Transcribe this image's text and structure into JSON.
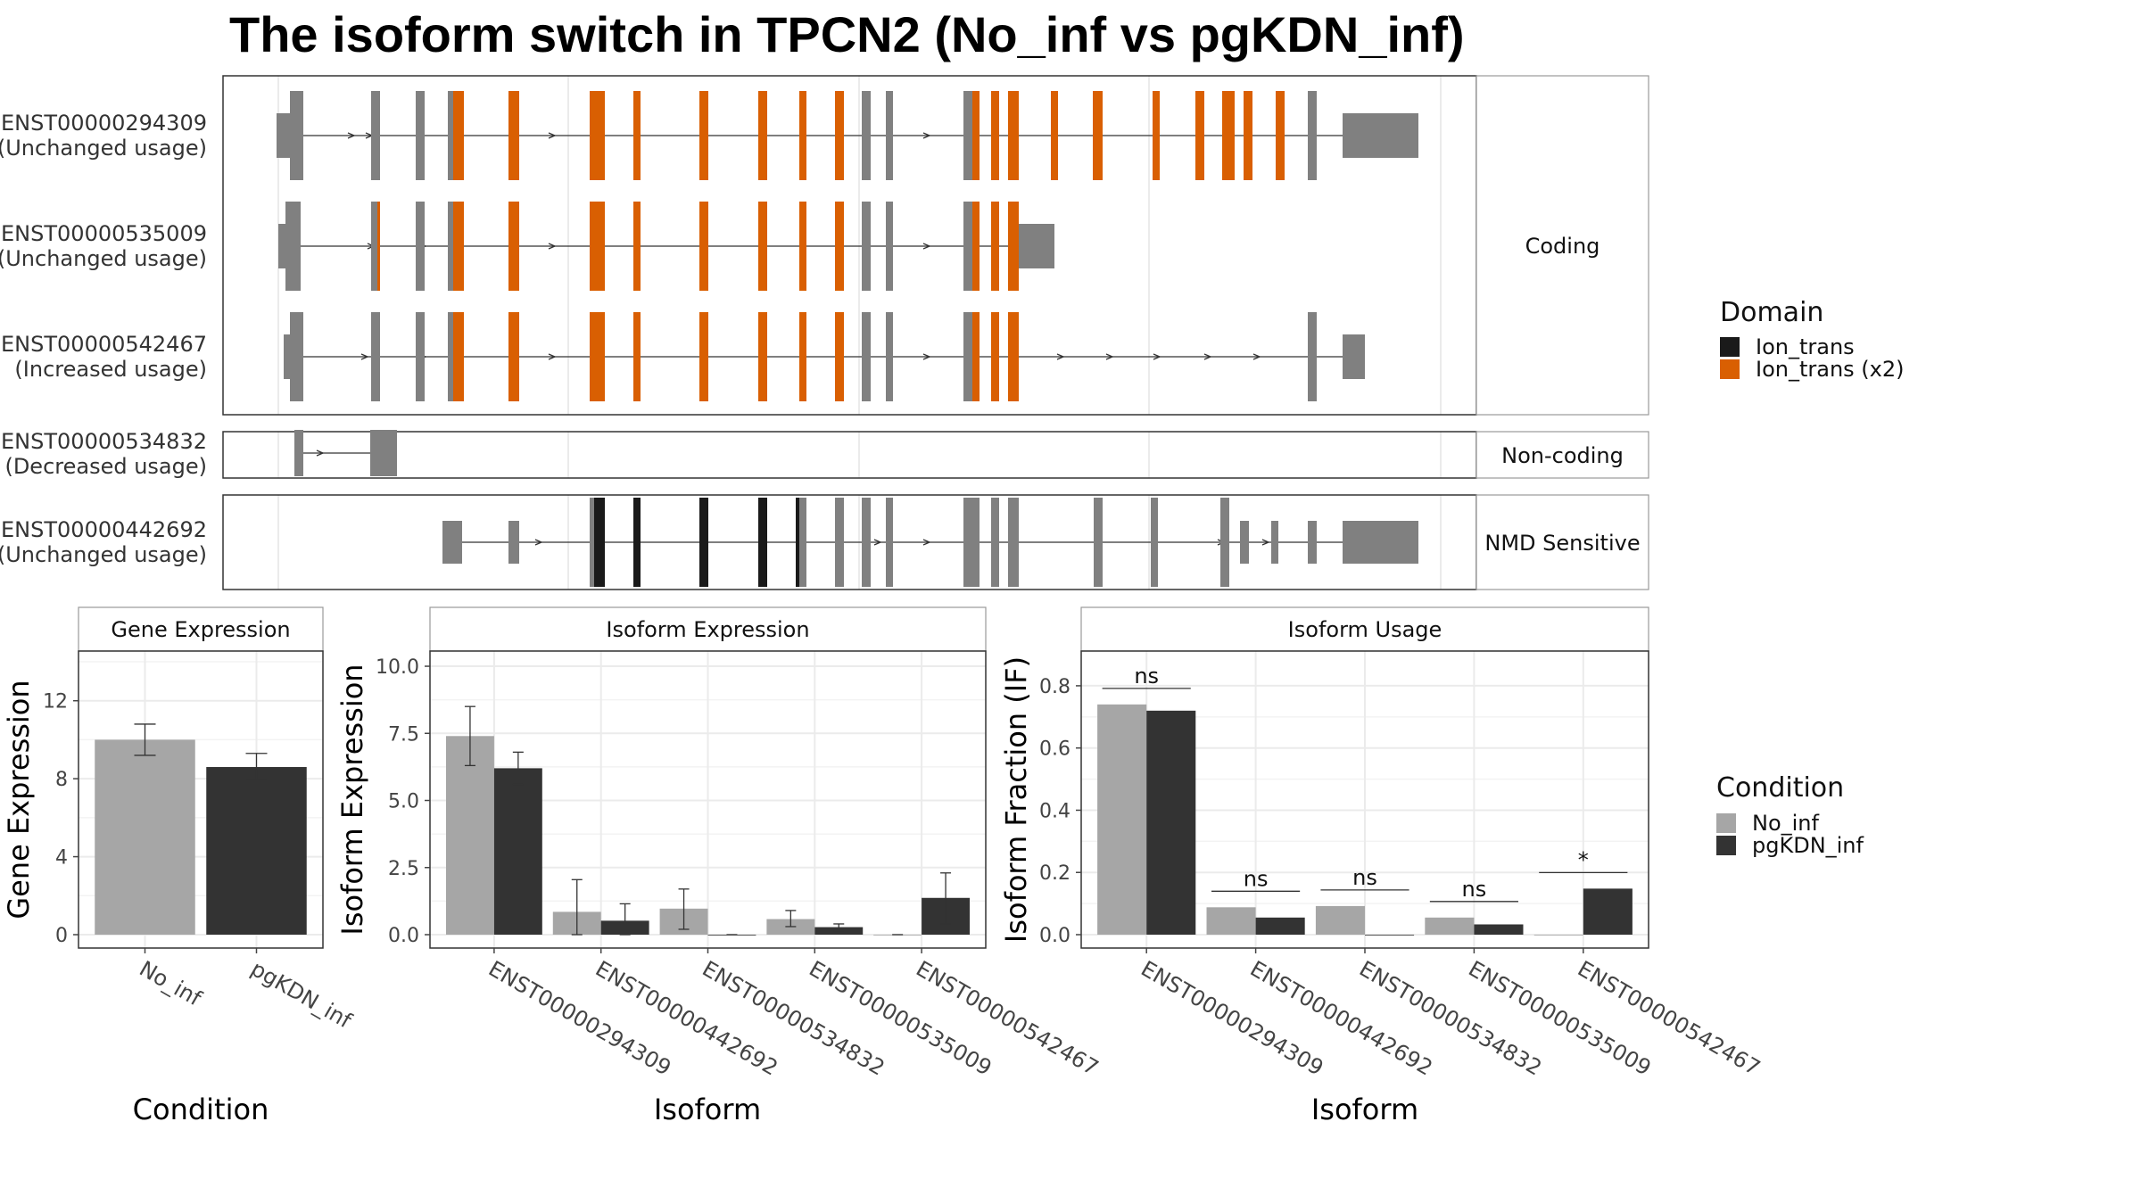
{
  "title": "The isoform switch in TPCN2 (No_inf vs pgKDN_inf)",
  "colors": {
    "exon": "#808080",
    "domain_ion_trans": "#1a1a1a",
    "domain_ion_trans_x2": "#d95f02",
    "no_inf": "#a6a6a6",
    "pgkdn_inf": "#333333",
    "grid": "#ebebeb",
    "strip_bg": "#ffffff",
    "panel_border": "#333333"
  },
  "transcripts": [
    {
      "id": "ENST00000294309",
      "usage": "(Unchanged usage)",
      "group": "Coding"
    },
    {
      "id": "ENST00000535009",
      "usage": "(Unchanged usage)",
      "group": "Coding"
    },
    {
      "id": "ENST00000542467",
      "usage": "(Increased usage)",
      "group": "Coding"
    },
    {
      "id": "ENST00000534832",
      "usage": "(Decreased usage)",
      "group": "Non-coding"
    },
    {
      "id": "ENST00000442692",
      "usage": "(Unchanged usage)",
      "group": "NMD Sensitive"
    }
  ],
  "groups": [
    "Coding",
    "Non-coding",
    "NMD Sensitive"
  ],
  "domain_legend": {
    "title": "Domain",
    "items": [
      {
        "label": "Ion_trans",
        "color": "#1a1a1a"
      },
      {
        "label": "Ion_trans (x2)",
        "color": "#d95f02"
      }
    ]
  },
  "condition_legend": {
    "title": "Condition",
    "items": [
      {
        "label": "No_inf",
        "color": "#a6a6a6"
      },
      {
        "label": "pgKDN_inf",
        "color": "#333333"
      }
    ]
  },
  "chart_data": [
    {
      "type": "bar",
      "title": "Gene Expression",
      "xlabel": "Condition",
      "ylabel": "Gene Expression",
      "categories": [
        "No_inf",
        "pgKDN_inf"
      ],
      "values": [
        10.0,
        8.6
      ],
      "error_low": [
        9.2,
        7.9
      ],
      "error_high": [
        10.8,
        9.3
      ],
      "ylim": [
        0,
        14
      ],
      "yticks": [
        "0",
        "4",
        "8",
        "12"
      ],
      "grid": true
    },
    {
      "type": "bar",
      "title": "Isoform Expression",
      "xlabel": "Isoform",
      "ylabel": "Isoform Expression",
      "categories": [
        "ENST00000294309",
        "ENST00000442692",
        "ENST00000534832",
        "ENST00000535009",
        "ENST00000542467"
      ],
      "series": [
        {
          "name": "No_inf",
          "values": [
            7.4,
            0.85,
            0.97,
            0.58,
            0.0
          ],
          "error_low": [
            6.3,
            0.0,
            0.2,
            0.3,
            0.0
          ],
          "error_high": [
            8.5,
            2.05,
            1.7,
            0.9,
            0.0
          ]
        },
        {
          "name": "pgKDN_inf",
          "values": [
            6.2,
            0.52,
            0.0,
            0.28,
            1.37
          ],
          "error_low": [
            5.6,
            0.0,
            0.0,
            0.15,
            0.4
          ],
          "error_high": [
            6.8,
            1.15,
            0.0,
            0.4,
            2.3
          ]
        }
      ],
      "ylim": [
        0,
        10.3
      ],
      "yticks": [
        "0.0",
        "2.5",
        "5.0",
        "7.5",
        "10.0"
      ],
      "grid": true
    },
    {
      "type": "bar",
      "title": "Isoform Usage",
      "xlabel": "Isoform",
      "ylabel": "Isoform Fraction (IF)",
      "categories": [
        "ENST00000294309",
        "ENST00000442692",
        "ENST00000534832",
        "ENST00000535009",
        "ENST00000542467"
      ],
      "series": [
        {
          "name": "No_inf",
          "values": [
            0.74,
            0.088,
            0.092,
            0.055,
            0.0
          ]
        },
        {
          "name": "pgKDN_inf",
          "values": [
            0.72,
            0.055,
            0.0,
            0.033,
            0.148
          ]
        }
      ],
      "significance": [
        "ns",
        "ns",
        "ns",
        "ns",
        "*"
      ],
      "ylim": [
        0,
        0.86
      ],
      "yticks": [
        "0.0",
        "0.2",
        "0.4",
        "0.6",
        "0.8"
      ],
      "grid": true
    }
  ]
}
